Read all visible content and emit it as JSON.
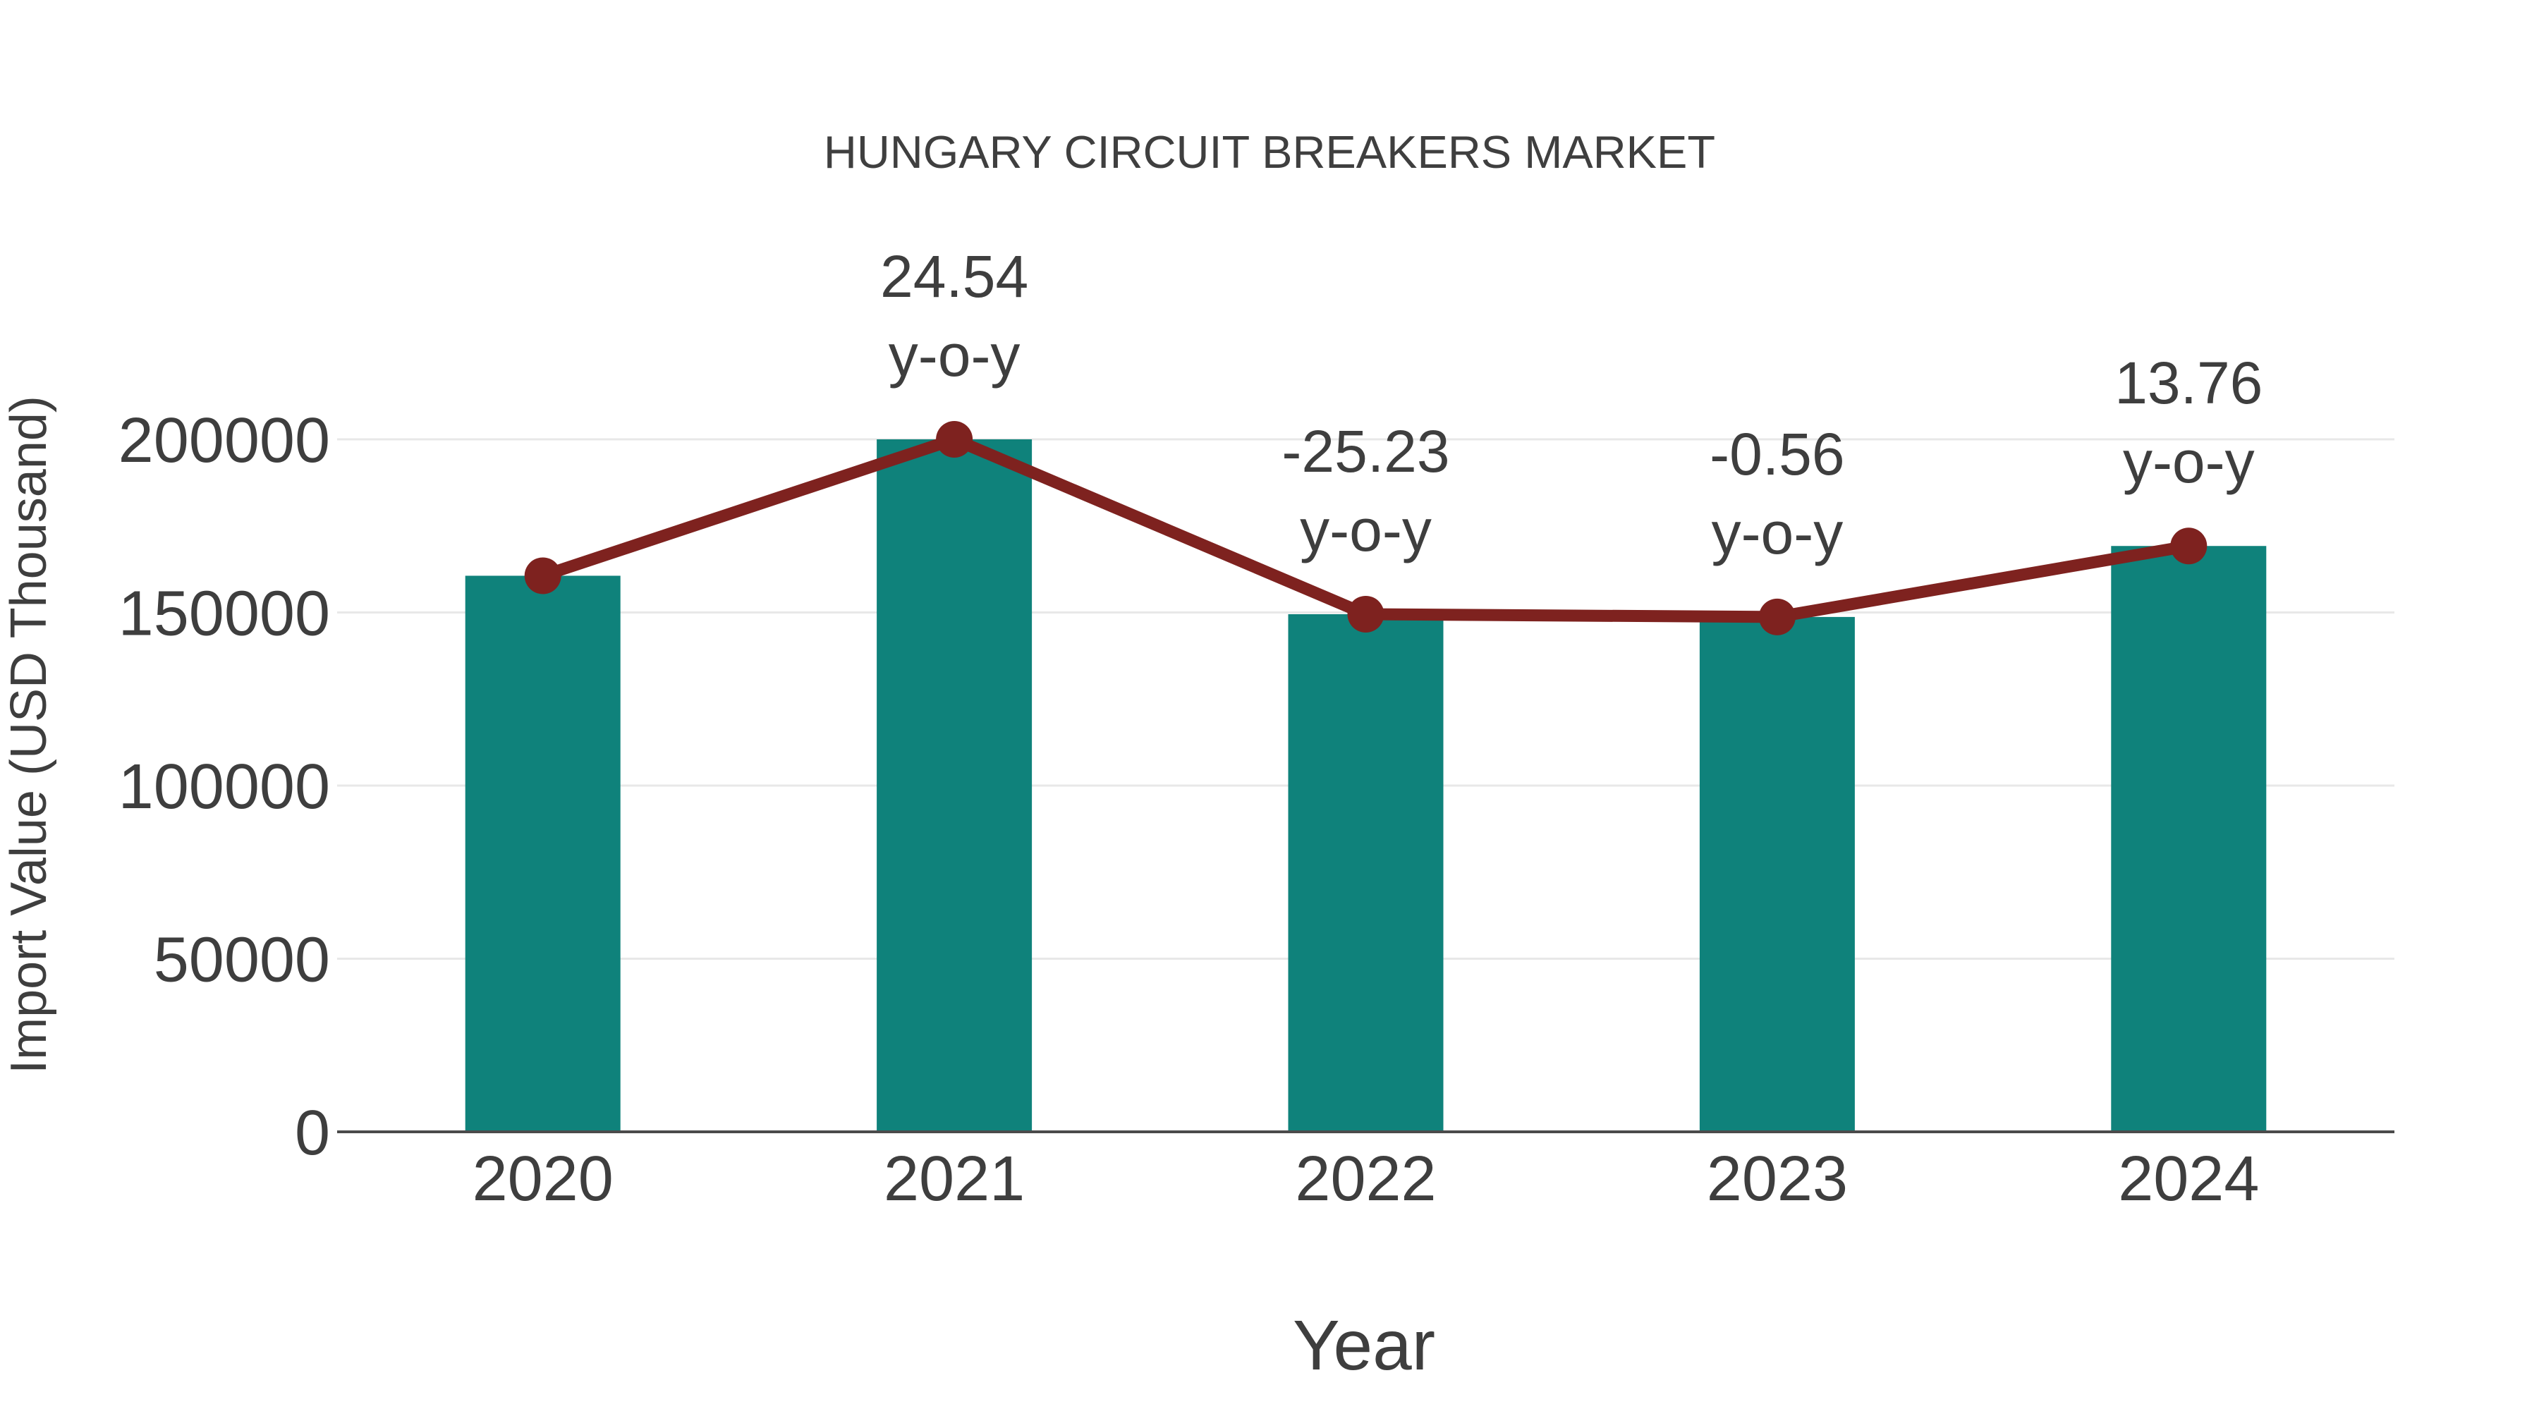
{
  "chart": {
    "title": "HUNGARY CIRCUIT BREAKERS MARKET",
    "xlabel": "Year",
    "ylabel": "Import Value (USD Thousand)"
  },
  "colors": {
    "bar": "#0F827B",
    "line": "#7E221F",
    "grid": "#E8E8E8",
    "axis_line": "#4B4B4B",
    "tick_text": "#3E3E3E",
    "title_text": "#3F3F3F",
    "annotation_text": "#3E3E3E",
    "background": "#FFFFFF"
  },
  "chart_data": {
    "type": "bar",
    "title": "HUNGARY CIRCUIT BREAKERS MARKET",
    "xlabel": "Year",
    "ylabel": "Import Value (USD Thousand)",
    "categories": [
      "2020",
      "2021",
      "2022",
      "2023",
      "2024"
    ],
    "series": [
      {
        "name": "Import Value (USD Thousand)",
        "type": "bar",
        "color": "#0F827B",
        "values": [
          160600,
          200000,
          149500,
          148700,
          169200
        ]
      },
      {
        "name": "Import Value trend line",
        "type": "line",
        "color": "#7E221F",
        "values": [
          160600,
          200000,
          149500,
          148700,
          169200
        ]
      }
    ],
    "yoy_percent": [
      null,
      24.54,
      -25.23,
      -0.56,
      13.76
    ],
    "annotations": [
      {
        "category": "2021",
        "value_label": "24.54",
        "suffix_label": "y-o-y"
      },
      {
        "category": "2022",
        "value_label": "-25.23",
        "suffix_label": "y-o-y"
      },
      {
        "category": "2023",
        "value_label": "-0.56",
        "suffix_label": "y-o-y"
      },
      {
        "category": "2024",
        "value_label": "13.76",
        "suffix_label": "y-o-y"
      }
    ],
    "yticks": [
      0,
      50000,
      100000,
      150000,
      200000
    ],
    "ylim": [
      0,
      220000
    ],
    "grid": true,
    "legend_position": "none"
  }
}
